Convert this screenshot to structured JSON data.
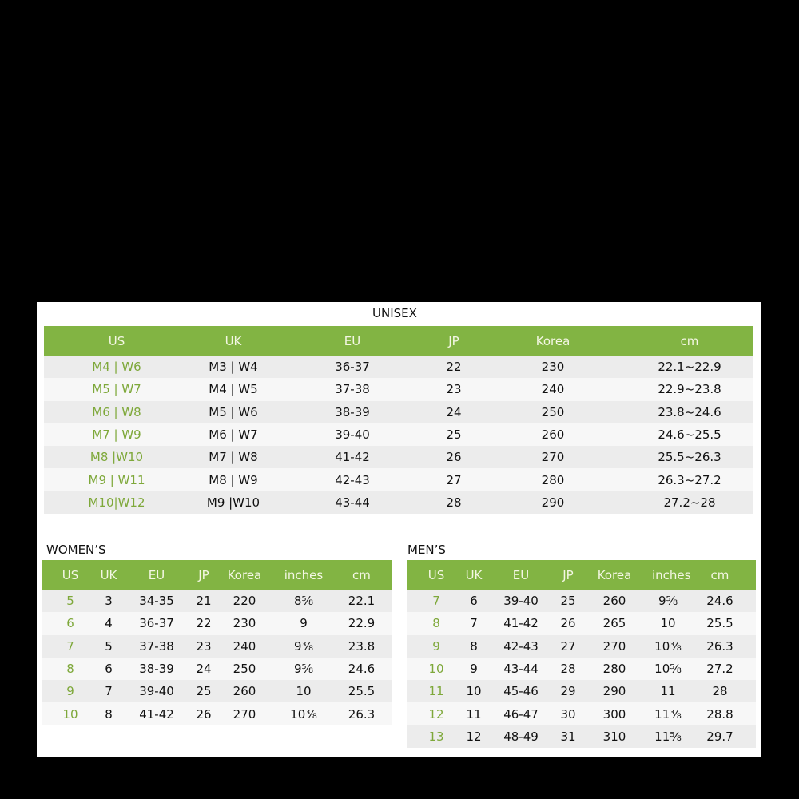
{
  "colors": {
    "header": "#82b443",
    "accent_text": "#7ea83a"
  },
  "unisex": {
    "title": "UNISEX",
    "headers": [
      "US",
      "UK",
      "EU",
      "JP",
      "Korea",
      "cm"
    ],
    "rows": [
      [
        "M4 | W6",
        "M3 | W4",
        "36-37",
        "22",
        "230",
        "22.1~22.9"
      ],
      [
        "M5 | W7",
        "M4 | W5",
        "37-38",
        "23",
        "240",
        "22.9~23.8"
      ],
      [
        "M6 | W8",
        "M5 | W6",
        "38-39",
        "24",
        "250",
        "23.8~24.6"
      ],
      [
        "M7 | W9",
        "M6 | W7",
        "39-40",
        "25",
        "260",
        "24.6~25.5"
      ],
      [
        "M8 |W10",
        "M7 | W8",
        "41-42",
        "26",
        "270",
        "25.5~26.3"
      ],
      [
        "M9 | W11",
        "M8 | W9",
        "42-43",
        "27",
        "280",
        "26.3~27.2"
      ],
      [
        "M10|W12",
        "M9 |W10",
        "43-44",
        "28",
        "290",
        "27.2~28"
      ]
    ]
  },
  "womens": {
    "title": "WOMEN’S",
    "headers": [
      "US",
      "UK",
      "EU",
      "JP",
      "Korea",
      "inches",
      "cm"
    ],
    "rows": [
      [
        "5",
        "3",
        "34-35",
        "21",
        "220",
        "8⅝",
        "22.1"
      ],
      [
        "6",
        "4",
        "36-37",
        "22",
        "230",
        "9",
        "22.9"
      ],
      [
        "7",
        "5",
        "37-38",
        "23",
        "240",
        "9⅜",
        "23.8"
      ],
      [
        "8",
        "6",
        "38-39",
        "24",
        "250",
        "9⅝",
        "24.6"
      ],
      [
        "9",
        "7",
        "39-40",
        "25",
        "260",
        "10",
        "25.5"
      ],
      [
        "10",
        "8",
        "41-42",
        "26",
        "270",
        "10⅜",
        "26.3"
      ]
    ]
  },
  "mens": {
    "title": "MEN’S",
    "headers": [
      "US",
      "UK",
      "EU",
      "JP",
      "Korea",
      "inches",
      "cm"
    ],
    "rows": [
      [
        "7",
        "6",
        "39-40",
        "25",
        "260",
        "9⅝",
        "24.6"
      ],
      [
        "8",
        "7",
        "41-42",
        "26",
        "265",
        "10",
        "25.5"
      ],
      [
        "9",
        "8",
        "42-43",
        "27",
        "270",
        "10⅜",
        "26.3"
      ],
      [
        "10",
        "9",
        "43-44",
        "28",
        "280",
        "10⅝",
        "27.2"
      ],
      [
        "11",
        "10",
        "45-46",
        "29",
        "290",
        "11",
        "28"
      ],
      [
        "12",
        "11",
        "46-47",
        "30",
        "300",
        "11⅜",
        "28.8"
      ],
      [
        "13",
        "12",
        "48-49",
        "31",
        "310",
        "11⅝",
        "29.7"
      ]
    ]
  }
}
